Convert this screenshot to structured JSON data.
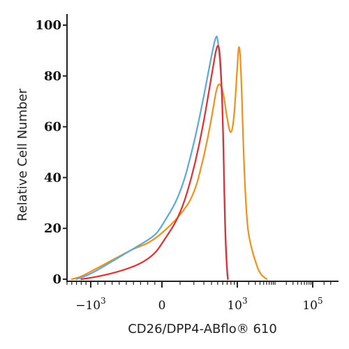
{
  "chart_data": {
    "type": "line",
    "xlabel": "CD26/DPP4-ABflo® 610",
    "ylabel": "Relative Cell Number",
    "xscale": "biexponential",
    "ylim": [
      0,
      100
    ],
    "y_ticks": [
      0,
      20,
      40,
      60,
      80,
      100
    ],
    "x_ticks": [
      {
        "base": "−10",
        "exp": "3",
        "value": -1000
      },
      {
        "base": "0",
        "exp": "",
        "value": 0
      },
      {
        "base": "10",
        "exp": "3",
        "value": 1000
      },
      {
        "base": "10",
        "exp": "5",
        "value": 100000
      }
    ],
    "grid": false,
    "legend": "none",
    "series": [
      {
        "color": "#f39019",
        "x": [
          -1400,
          -1200,
          -1000,
          -800,
          -600,
          -400,
          -200,
          0,
          100,
          200,
          300,
          400,
          500,
          600,
          700,
          800,
          900,
          1000,
          1100,
          1200,
          1300,
          1500,
          1800,
          2200,
          3000,
          4000,
          6000
        ],
        "y": [
          0,
          1,
          3,
          6,
          9,
          12,
          14,
          18,
          25,
          33,
          48,
          63,
          78,
          75,
          63,
          56,
          64,
          84,
          93,
          88,
          75,
          45,
          22,
          14,
          7,
          2,
          0
        ]
      },
      {
        "color": "#5aa9d8",
        "x": [
          -1300,
          -1000,
          -700,
          -400,
          -100,
          0,
          100,
          200,
          300,
          400,
          470,
          500,
          550,
          600,
          650,
          700,
          720
        ],
        "y": [
          0,
          2,
          7,
          12,
          17,
          21,
          33,
          53,
          72,
          88,
          96,
          95,
          85,
          65,
          18,
          2,
          0
        ]
      },
      {
        "color": "#e52d2f",
        "x": [
          -1200,
          -900,
          -600,
          -300,
          -100,
          0,
          100,
          200,
          300,
          400,
          500,
          550,
          600,
          650,
          700,
          720
        ],
        "y": [
          0,
          1,
          3,
          6,
          10,
          14,
          25,
          43,
          62,
          80,
          94,
          88,
          65,
          20,
          3,
          0
        ]
      }
    ]
  }
}
